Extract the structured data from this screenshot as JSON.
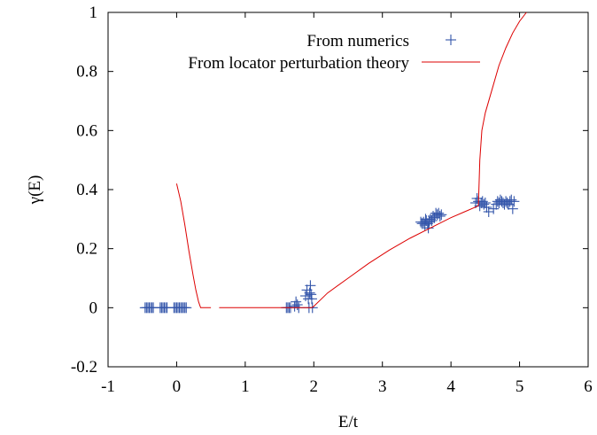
{
  "chart_data": {
    "type": "scatter",
    "title": "",
    "xlabel": "E/t",
    "ylabel": "γ(E)",
    "xlim": [
      -1,
      6
    ],
    "ylim": [
      -0.2,
      1
    ],
    "xticks": [
      "-1",
      "0",
      "1",
      "2",
      "3",
      "4",
      "5",
      "6"
    ],
    "yticks": [
      "-0.2",
      "0",
      "0.2",
      "0.4",
      "0.6",
      "0.8",
      "1"
    ],
    "grid": false,
    "legend_position": "top-right",
    "series": [
      {
        "name": "From numerics",
        "kind": "scatter",
        "marker": "plus",
        "color": "#3355aa",
        "points": [
          [
            -0.46,
            0.0
          ],
          [
            -0.44,
            0.0
          ],
          [
            -0.42,
            0.0
          ],
          [
            -0.4,
            0.0
          ],
          [
            -0.38,
            0.0
          ],
          [
            -0.36,
            0.0
          ],
          [
            -0.34,
            0.0
          ],
          [
            -0.24,
            0.0
          ],
          [
            -0.22,
            0.0
          ],
          [
            -0.2,
            0.0
          ],
          [
            -0.18,
            0.0
          ],
          [
            -0.16,
            0.0
          ],
          [
            -0.14,
            0.0
          ],
          [
            -0.04,
            0.0
          ],
          [
            -0.02,
            0.0
          ],
          [
            0.0,
            0.0
          ],
          [
            0.02,
            0.0
          ],
          [
            0.04,
            0.0
          ],
          [
            0.06,
            0.0
          ],
          [
            0.08,
            0.0
          ],
          [
            0.1,
            0.0
          ],
          [
            0.12,
            0.0
          ],
          [
            0.14,
            0.0
          ],
          [
            1.6,
            0.0
          ],
          [
            1.62,
            0.0
          ],
          [
            1.64,
            0.0
          ],
          [
            1.66,
            0.0
          ],
          [
            1.72,
            0.005
          ],
          [
            1.74,
            0.02
          ],
          [
            1.76,
            0.01
          ],
          [
            1.78,
            0.0
          ],
          [
            1.88,
            0.04
          ],
          [
            1.9,
            0.06
          ],
          [
            1.92,
            0.03
          ],
          [
            1.94,
            0.05
          ],
          [
            1.95,
            0.075
          ],
          [
            1.96,
            0.045
          ],
          [
            1.97,
            0.03
          ],
          [
            1.98,
            0.0
          ],
          [
            1.93,
            0.0
          ],
          [
            3.56,
            0.29
          ],
          [
            3.58,
            0.285
          ],
          [
            3.6,
            0.29
          ],
          [
            3.62,
            0.28
          ],
          [
            3.64,
            0.295
          ],
          [
            3.66,
            0.285
          ],
          [
            3.68,
            0.29
          ],
          [
            3.7,
            0.3
          ],
          [
            3.72,
            0.295
          ],
          [
            3.74,
            0.31
          ],
          [
            3.76,
            0.305
          ],
          [
            3.78,
            0.32
          ],
          [
            3.8,
            0.315
          ],
          [
            3.82,
            0.32
          ],
          [
            3.84,
            0.31
          ],
          [
            3.86,
            0.315
          ],
          [
            3.63,
            0.3
          ],
          [
            3.67,
            0.27
          ],
          [
            4.36,
            0.355
          ],
          [
            4.38,
            0.37
          ],
          [
            4.4,
            0.36
          ],
          [
            4.42,
            0.345
          ],
          [
            4.44,
            0.355
          ],
          [
            4.46,
            0.36
          ],
          [
            4.48,
            0.35
          ],
          [
            4.5,
            0.355
          ],
          [
            4.52,
            0.34
          ],
          [
            4.55,
            0.325
          ],
          [
            4.62,
            0.335
          ],
          [
            4.66,
            0.35
          ],
          [
            4.68,
            0.36
          ],
          [
            4.7,
            0.355
          ],
          [
            4.72,
            0.365
          ],
          [
            4.74,
            0.36
          ],
          [
            4.76,
            0.355
          ],
          [
            4.78,
            0.35
          ],
          [
            4.8,
            0.36
          ],
          [
            4.82,
            0.355
          ],
          [
            4.84,
            0.35
          ],
          [
            4.86,
            0.36
          ],
          [
            4.88,
            0.365
          ],
          [
            4.9,
            0.335
          ],
          [
            4.92,
            0.36
          ]
        ]
      },
      {
        "name": "From locator perturbation theory",
        "kind": "line",
        "color": "#dd0000",
        "segments": [
          [
            [
              0.0,
              0.42
            ],
            [
              0.06,
              0.36
            ],
            [
              0.12,
              0.28
            ],
            [
              0.18,
              0.19
            ],
            [
              0.24,
              0.11
            ],
            [
              0.28,
              0.06
            ],
            [
              0.32,
              0.02
            ],
            [
              0.35,
              0.0
            ],
            [
              0.5,
              0.0
            ]
          ],
          [
            [
              0.62,
              0.0
            ],
            [
              1.0,
              0.0
            ],
            [
              1.5,
              0.0
            ],
            [
              1.97,
              0.0
            ],
            [
              2.0,
              0.005
            ],
            [
              2.2,
              0.05
            ],
            [
              2.5,
              0.1
            ],
            [
              2.8,
              0.15
            ],
            [
              3.1,
              0.195
            ],
            [
              3.4,
              0.235
            ],
            [
              3.7,
              0.27
            ],
            [
              4.0,
              0.305
            ],
            [
              4.2,
              0.325
            ],
            [
              4.4,
              0.345
            ]
          ],
          [
            [
              4.4,
              0.345
            ],
            [
              4.42,
              0.5
            ],
            [
              4.45,
              0.6
            ],
            [
              4.5,
              0.66
            ],
            [
              4.6,
              0.74
            ],
            [
              4.7,
              0.82
            ],
            [
              4.8,
              0.88
            ],
            [
              4.9,
              0.93
            ],
            [
              5.0,
              0.97
            ],
            [
              5.1,
              1.0
            ]
          ]
        ]
      }
    ]
  }
}
